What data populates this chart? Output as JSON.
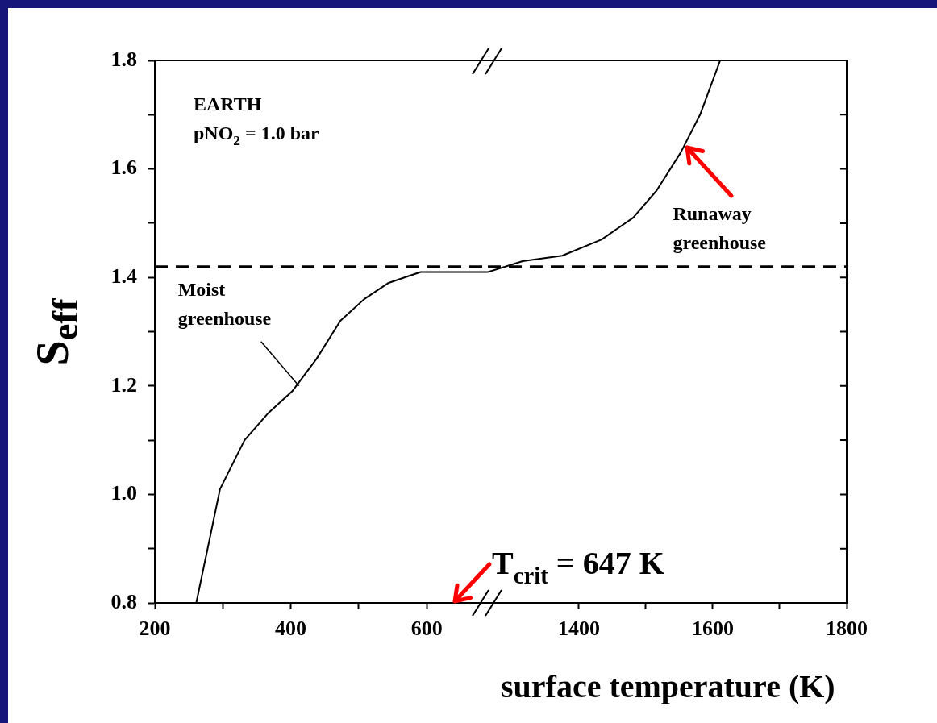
{
  "chart_data": [
    {
      "type": "line",
      "ylabel": "S$_{eff}$",
      "xlabel": "surface temperature (K)",
      "x": [
        261,
        296,
        332,
        367,
        402,
        438,
        473,
        508,
        544,
        591,
        638,
        690
      ],
      "values": [
        0.8,
        1.01,
        1.1,
        1.15,
        1.19,
        1.25,
        1.32,
        1.36,
        1.39,
        1.41,
        1.41,
        1.41
      ],
      "color": "#000000",
      "xlim": [
        200,
        690
      ],
      "xticks": [
        200,
        {
          "value": 300,
          "label": null
        },
        400,
        {
          "value": 500,
          "label": null
        },
        600
      ],
      "ylim": [
        0.8,
        1.8
      ],
      "yticks": [
        0.8,
        {
          "value": 0.9,
          "label": null
        },
        {
          "value": 1,
          "label": "1.0"
        },
        {
          "value": 1.1,
          "label": null
        },
        1.2,
        {
          "value": 1.3,
          "label": null
        },
        1.4,
        {
          "value": 1.5,
          "label": null
        },
        1.6,
        {
          "value": 1.7,
          "label": null
        },
        1.8
      ],
      "ref_lines": [
        {
          "axis": "y",
          "value": 1.42,
          "line_style": "dashed"
        }
      ],
      "annotations": [
        "EARTH",
        "pNO$_{2}$ = 1.0 bar",
        {
          "text": "Moist greenhouse",
          "x": 412,
          "y": 1.2
        },
        "T$_{crit}$ = 647 K"
      ]
    },
    {
      "type": "line",
      "tick_labels": "x",
      "x": [
        1264,
        1316,
        1375,
        1434,
        1481,
        1516,
        1552,
        1581,
        1611
      ],
      "values": [
        1.41,
        1.43,
        1.44,
        1.47,
        1.51,
        1.56,
        1.63,
        1.7,
        1.8
      ],
      "color": "#000000",
      "xlim": [
        1264,
        1800
      ],
      "xticks": [
        1400,
        {
          "value": 1500,
          "label": null
        },
        1600,
        {
          "value": 1700,
          "label": null
        },
        1800
      ],
      "ylim": [
        0.8,
        1.8
      ],
      "yticks": [
        {
          "value": 0.8,
          "label": null
        },
        {
          "value": 0.9,
          "label": null
        },
        {
          "value": 1,
          "label": null
        },
        {
          "value": 1.1,
          "label": null
        },
        {
          "value": 1.2,
          "label": null
        },
        {
          "value": 1.3,
          "label": null
        },
        {
          "value": 1.4,
          "label": null
        },
        {
          "value": 1.5,
          "label": null
        },
        {
          "value": 1.6,
          "label": null
        },
        {
          "value": 1.7,
          "label": null
        },
        {
          "value": 1.8,
          "label": null
        }
      ],
      "ref_lines": [
        {
          "axis": "y",
          "value": 1.42,
          "line_style": "dashed"
        }
      ],
      "annotations": [
        {
          "text": "Runaway greenhouse",
          "x": 1562,
          "y": 1.64
        }
      ]
    }
  ]
}
